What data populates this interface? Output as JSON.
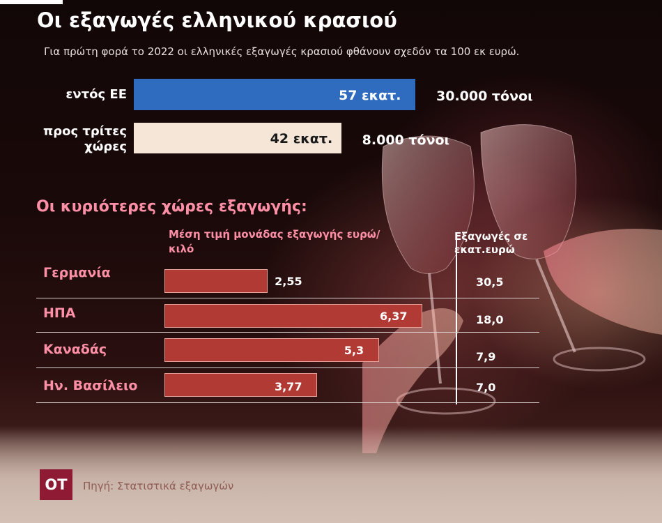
{
  "title": "Οι εξαγωγές ελληνικού κρασιού",
  "subtitle": "Για πρώτη φορά το 2022  οι ελληνικές εξαγωγές κρασιού φθάνουν σχεδόν τα 100 εκ ευρώ.",
  "colors": {
    "eu_bar": "#2f6cc0",
    "third_bar": "#f5e6d8",
    "country_bar": "#b23a34",
    "accent_pink": "#ff8fa6",
    "logo": "#8e1b33"
  },
  "icons": [
    "wine-glasses-photo"
  ],
  "chart_data": [
    {
      "type": "bar",
      "orientation": "horizontal",
      "categories": [
        "εντός ΕΕ",
        "προς τρίτες χώρες"
      ],
      "values": [
        57,
        42
      ],
      "value_labels": [
        "57 εκατ.",
        "42 εκατ."
      ],
      "tonnes_labels": [
        "30.000 τόνοι",
        "8.000 τόνοι"
      ],
      "tonnes": [
        30000,
        8000
      ]
    },
    {
      "type": "bar",
      "orientation": "horizontal",
      "title": "Οι κυριότερες χώρες εξαγωγής:",
      "xlabel": "Μέση τιμή μονάδας εξαγωγής ευρώ/κιλό",
      "categories": [
        "Γερμανία",
        "ΗΠΑ",
        "Καναδάς",
        "Ην. Βασίλειο"
      ],
      "values": [
        2.55,
        6.37,
        5.3,
        3.77
      ],
      "value_labels": [
        "2,55",
        "6,37",
        "5,3",
        "3,77"
      ],
      "exports_header": "Εξαγωγές σε εκατ.ευρώ",
      "exports": [
        30.5,
        18.0,
        7.9,
        7.0
      ],
      "exports_labels": [
        "30,5",
        "18,0",
        "7,9",
        "7,0"
      ]
    }
  ],
  "footer": {
    "logo_text": "ΟΤ",
    "source": "Πηγή: Στατιστικά εξαγωγών"
  }
}
